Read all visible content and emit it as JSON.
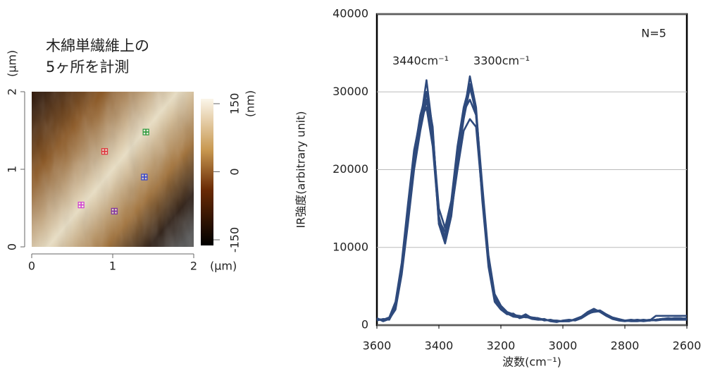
{
  "chart_data": [
    {
      "type": "scatter",
      "title_lines": [
        "木綿単繊維上の",
        "5ヶ所を計測"
      ],
      "xlabel": "(µm)",
      "ylabel": "(µm)",
      "xlim": [
        0,
        2
      ],
      "ylim": [
        0,
        2
      ],
      "xticks": [
        0,
        1,
        2
      ],
      "yticks": [
        0,
        1,
        2
      ],
      "points": {
        "x": [
          0.9,
          1.41,
          1.39,
          0.61,
          1.02
        ],
        "y": [
          1.23,
          1.48,
          0.9,
          0.54,
          0.46
        ],
        "colors": [
          "#e0303a",
          "#2a9a3a",
          "#3040d0",
          "#d040d0",
          "#8030a0"
        ]
      },
      "colorbar": {
        "label": "(nm)",
        "lim": [
          -150,
          150
        ],
        "ticks": [
          150,
          0,
          -150
        ]
      }
    },
    {
      "type": "line",
      "ylabel": "IR強度(arbitrary unit)",
      "xlabel": "波数(cm⁻¹)",
      "annotations": [
        "N=5",
        "3440cm⁻¹",
        "3300cm⁻¹"
      ],
      "xlim": [
        3600,
        2600
      ],
      "ylim": [
        0,
        40000
      ],
      "xticks": [
        3600,
        3400,
        3200,
        3000,
        2800,
        2600
      ],
      "yticks": [
        0,
        10000,
        20000,
        30000,
        40000
      ],
      "grid": true,
      "x": [
        3600,
        3580,
        3560,
        3540,
        3520,
        3500,
        3480,
        3460,
        3440,
        3420,
        3400,
        3380,
        3360,
        3340,
        3320,
        3300,
        3280,
        3260,
        3240,
        3220,
        3200,
        3180,
        3160,
        3140,
        3120,
        3100,
        3080,
        3060,
        3040,
        3020,
        3000,
        2980,
        2960,
        2940,
        2920,
        2900,
        2880,
        2860,
        2840,
        2820,
        2800,
        2780,
        2760,
        2740,
        2720,
        2700,
        2680,
        2660,
        2640,
        2620,
        2600
      ],
      "series": [
        {
          "color": "#2e4a7d",
          "values": [
            800,
            600,
            900,
            2500,
            7000,
            14000,
            21000,
            26000,
            31500,
            25000,
            14000,
            11000,
            15000,
            22000,
            27000,
            32000,
            28000,
            17000,
            8000,
            3500,
            2200,
            1500,
            1200,
            1000,
            1300,
            900,
            800,
            700,
            600,
            500,
            500,
            600,
            700,
            1000,
            1500,
            1900,
            1800,
            1300,
            900,
            700,
            600,
            600,
            600,
            600,
            600,
            700,
            800,
            800,
            800,
            800,
            800
          ]
        },
        {
          "color": "#2e4a7d",
          "values": [
            700,
            700,
            800,
            2000,
            6500,
            13000,
            20000,
            25000,
            29000,
            24000,
            13000,
            10500,
            14000,
            21000,
            26500,
            30500,
            27500,
            18000,
            9000,
            4000,
            2500,
            1700,
            1400,
            1100,
            1200,
            1000,
            900,
            700,
            600,
            600,
            500,
            500,
            800,
            1100,
            1700,
            2100,
            1700,
            1200,
            800,
            600,
            500,
            600,
            700,
            600,
            600,
            1200,
            1200,
            1200,
            1200,
            1200,
            1200
          ]
        },
        {
          "color": "#2e4a7d",
          "values": [
            900,
            500,
            800,
            2800,
            7500,
            15000,
            22000,
            27000,
            30000,
            24500,
            15000,
            12500,
            16000,
            23000,
            28000,
            31000,
            27000,
            16000,
            7500,
            3000,
            2000,
            1400,
            1500,
            900,
            1100,
            800,
            700,
            800,
            500,
            400,
            600,
            700,
            600,
            900,
            1400,
            1800,
            1900,
            1400,
            1000,
            800,
            600,
            500,
            500,
            600,
            700,
            600,
            700,
            700,
            700,
            700,
            700
          ]
        },
        {
          "color": "#2e4a7d",
          "values": [
            800,
            700,
            1000,
            3000,
            8000,
            15500,
            22500,
            26500,
            28000,
            23000,
            13500,
            12000,
            14500,
            20000,
            25000,
            26500,
            25500,
            16500,
            8500,
            3800,
            2300,
            1600,
            1300,
            1200,
            1000,
            1000,
            900,
            600,
            700,
            500,
            500,
            600,
            700,
            1100,
            1600,
            2000,
            1700,
            1200,
            900,
            700,
            600,
            700,
            600,
            500,
            600,
            700,
            800,
            900,
            800,
            800,
            900
          ]
        },
        {
          "color": "#2e4a7d",
          "values": [
            600,
            800,
            700,
            2200,
            6800,
            14500,
            21500,
            25500,
            30000,
            25500,
            13000,
            11500,
            15500,
            22500,
            27500,
            29000,
            27000,
            17500,
            8200,
            3300,
            2100,
            1500,
            1100,
            1000,
            1400,
            900,
            700,
            700,
            600,
            500,
            500,
            500,
            700,
            1000,
            1500,
            1700,
            1800,
            1300,
            800,
            700,
            600,
            600,
            600,
            700,
            600,
            700,
            800,
            800,
            900,
            900,
            800
          ]
        }
      ]
    }
  ]
}
